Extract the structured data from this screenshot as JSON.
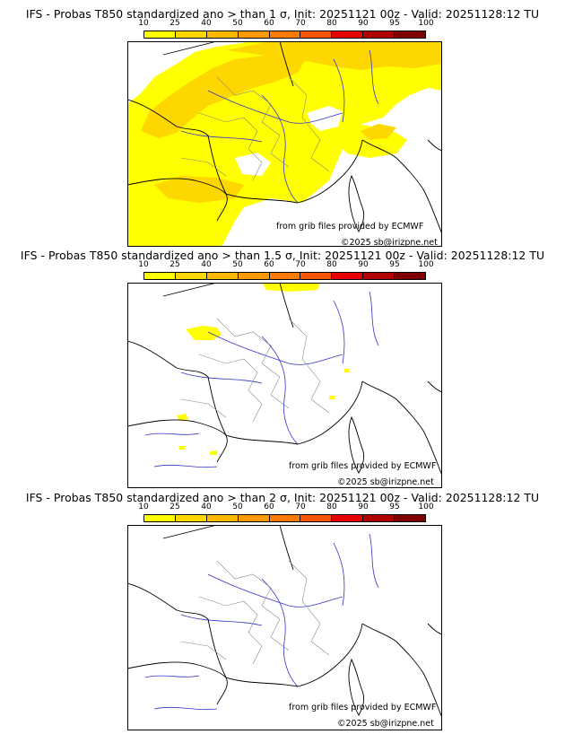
{
  "legend": {
    "ticks": [
      "10",
      "25",
      "40",
      "50",
      "60",
      "70",
      "80",
      "90",
      "95",
      "100"
    ],
    "colors": [
      "#ffff00",
      "#ffd700",
      "#ffb800",
      "#ff9900",
      "#ff7a00",
      "#ff5500",
      "#e60000",
      "#b00000",
      "#800000",
      "#5a0000"
    ]
  },
  "credit": "from grib files provided by ECMWF",
  "copyright": "©2025 sb@irizpne.net",
  "panels": [
    {
      "title": "IFS - Probas T850  standardized ano > than 1 σ, Init: 20251121 00z - Valid: 20251128:12 TU"
    },
    {
      "title": "IFS - Probas T850  standardized ano > than 1.5 σ, Init: 20251121 00z - Valid: 20251128:12 TU"
    },
    {
      "title": "IFS - Probas T850  standardized ano > than 2 σ, Init: 20251121 00z - Valid: 20251128:12 TU"
    }
  ]
}
